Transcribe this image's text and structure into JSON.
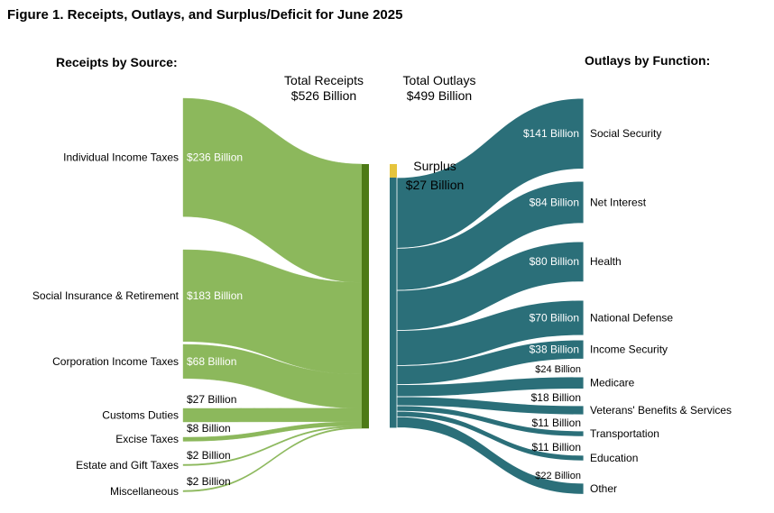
{
  "figure_title": "Figure 1. Receipts, Outlays, and Surplus/Deficit for June 2025",
  "colors": {
    "receipts": "#8cb85c",
    "receipts_total_bar": "#4d7a16",
    "outlays": "#2b6f79",
    "surplus": "#e6c43c"
  },
  "chart_data": {
    "type": "sankey",
    "receipts_heading": "Receipts by Source:",
    "outlays_heading": "Outlays by Function:",
    "total_receipts": {
      "label": "Total Receipts",
      "amount": "$526 Billion",
      "value": 526
    },
    "total_outlays": {
      "label": "Total Outlays",
      "amount": "$499 Billion",
      "value": 499
    },
    "surplus": {
      "label": "Surplus",
      "amount": "$27 Billion",
      "value": 27
    },
    "receipts": [
      {
        "name": "Individual Income Taxes",
        "value": 236,
        "label": "$236 Billion"
      },
      {
        "name": "Social Insurance & Retirement",
        "value": 183,
        "label": "$183 Billion"
      },
      {
        "name": "Corporation Income Taxes",
        "value": 68,
        "label": "$68 Billion"
      },
      {
        "name": "Customs Duties",
        "value": 27,
        "label": "$27 Billion"
      },
      {
        "name": "Excise Taxes",
        "value": 8,
        "label": "$8 Billion"
      },
      {
        "name": "Estate and Gift Taxes",
        "value": 2,
        "label": "$2 Billion"
      },
      {
        "name": "Miscellaneous",
        "value": 2,
        "label": "$2 Billion"
      }
    ],
    "outlays": [
      {
        "name": "Social Security",
        "value": 141,
        "label": "$141 Billion"
      },
      {
        "name": "Net Interest",
        "value": 84,
        "label": "$84 Billion"
      },
      {
        "name": "Health",
        "value": 80,
        "label": "$80 Billion"
      },
      {
        "name": "National Defense",
        "value": 70,
        "label": "$70 Billion"
      },
      {
        "name": "Income Security",
        "value": 38,
        "label": "$38 Billion"
      },
      {
        "name": "Medicare",
        "value": 24,
        "label": "$24 Billion"
      },
      {
        "name": "Veterans' Benefits & Services",
        "value": 18,
        "label": "$18 Billion"
      },
      {
        "name": "Transportation",
        "value": 11,
        "label": "$11 Billion"
      },
      {
        "name": "Education",
        "value": 11,
        "label": "$11 Billion"
      },
      {
        "name": "Other",
        "value": 22,
        "label": "$22 Billion"
      }
    ]
  }
}
